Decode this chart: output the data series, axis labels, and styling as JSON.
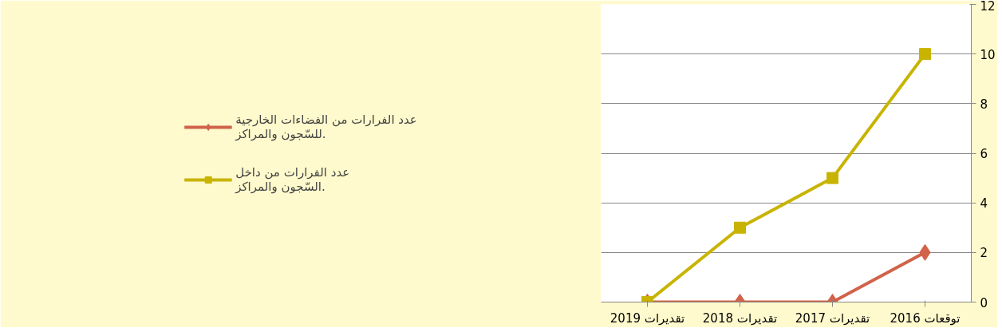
{
  "chart_data": {
    "type": "line",
    "categories": [
      "تقديرات 2019",
      "تقديرات 2018",
      "تقديرات 2017",
      "توقعات 2016"
    ],
    "series": [
      {
        "name": "عدد الفرارات من الفضاءات الخارجية للسّجون والمراكز.",
        "color": "#d0634a",
        "marker": "diamond",
        "values": [
          0,
          0,
          0,
          2
        ]
      },
      {
        "name": "عدد الفرارات من داخل السّجون والمراكز.",
        "color": "#c8b400",
        "marker": "square",
        "values": [
          0,
          3,
          5,
          10
        ]
      }
    ],
    "ylim": [
      0,
      12
    ],
    "yticks": [
      0,
      2,
      4,
      6,
      8,
      10,
      12
    ],
    "grid": "y",
    "legend": "left",
    "line_style": "solid"
  }
}
